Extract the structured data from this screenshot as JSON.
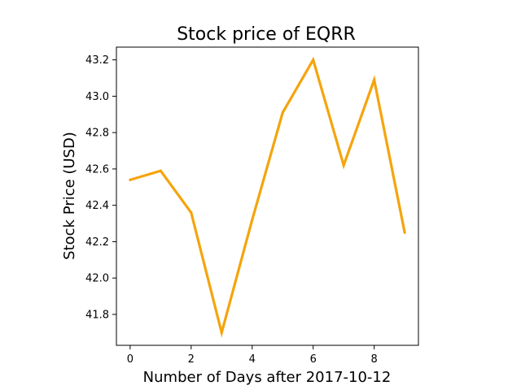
{
  "chart_data": {
    "type": "line",
    "title": "Stock price of EQRR",
    "xlabel": "Number of Days after 2017-10-12",
    "ylabel": "Stock Price (USD)",
    "x": [
      0,
      1,
      2,
      3,
      4,
      5,
      6,
      7,
      8,
      9
    ],
    "series": [
      {
        "values": [
          42.54,
          42.59,
          42.36,
          41.7,
          42.32,
          42.91,
          43.2,
          42.62,
          43.09,
          42.25
        ],
        "color": "#f5a40c"
      }
    ],
    "xlim": [
      -0.45,
      9.45
    ],
    "ylim": [
      41.63,
      43.27
    ],
    "xticks": [
      0,
      2,
      4,
      6,
      8
    ],
    "yticks": [
      41.8,
      42.0,
      42.2,
      42.4,
      42.6,
      42.8,
      43.0,
      43.2
    ],
    "grid": false,
    "legend": "none"
  }
}
